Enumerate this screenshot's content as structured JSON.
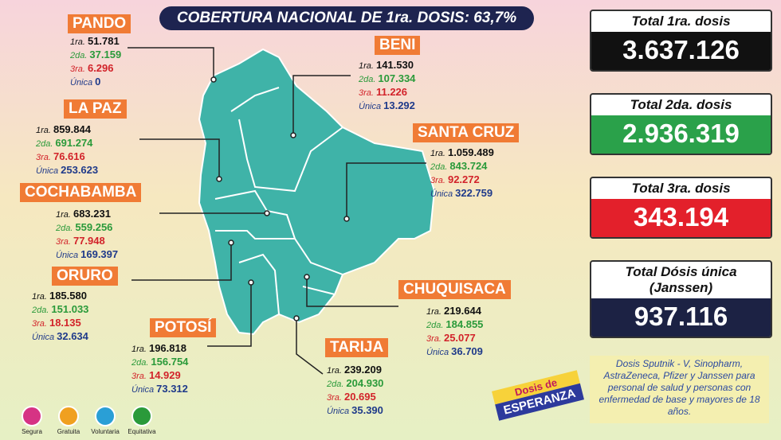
{
  "title": "COBERTURA NACIONAL DE 1ra. DOSIS: 63,7%",
  "departments": [
    {
      "name": "PANDO",
      "doses": [
        {
          "label": "1ra.",
          "value": "51.781"
        },
        {
          "label": "2da.",
          "value": "37.159"
        },
        {
          "label": "3ra.",
          "value": "6.296"
        },
        {
          "label": "Única",
          "value": "0"
        }
      ]
    },
    {
      "name": "BENI",
      "doses": [
        {
          "label": "1ra.",
          "value": "141.530"
        },
        {
          "label": "2da.",
          "value": "107.334"
        },
        {
          "label": "3ra.",
          "value": "11.226"
        },
        {
          "label": "Única",
          "value": "13.292"
        }
      ]
    },
    {
      "name": "LA PAZ",
      "doses": [
        {
          "label": "1ra.",
          "value": "859.844"
        },
        {
          "label": "2da.",
          "value": "691.274"
        },
        {
          "label": "3ra.",
          "value": "76.616"
        },
        {
          "label": "Única",
          "value": "253.623"
        }
      ]
    },
    {
      "name": "SANTA CRUZ",
      "doses": [
        {
          "label": "1ra.",
          "value": "1.059.489"
        },
        {
          "label": "2da.",
          "value": "843.724"
        },
        {
          "label": "3ra.",
          "value": "92.272"
        },
        {
          "label": "Única",
          "value": "322.759"
        }
      ]
    },
    {
      "name": "COCHABAMBA",
      "doses": [
        {
          "label": "1ra.",
          "value": "683.231"
        },
        {
          "label": "2da.",
          "value": "559.256"
        },
        {
          "label": "3ra.",
          "value": "77.948"
        },
        {
          "label": "Única",
          "value": "169.397"
        }
      ]
    },
    {
      "name": "ORURO",
      "doses": [
        {
          "label": "1ra.",
          "value": "185.580"
        },
        {
          "label": "2da.",
          "value": "151.033"
        },
        {
          "label": "3ra.",
          "value": "18.135"
        },
        {
          "label": "Única",
          "value": "32.634"
        }
      ]
    },
    {
      "name": "CHUQUISACA",
      "doses": [
        {
          "label": "1ra.",
          "value": "219.644"
        },
        {
          "label": "2da.",
          "value": "184.855"
        },
        {
          "label": "3ra.",
          "value": "25.077"
        },
        {
          "label": "Única",
          "value": "36.709"
        }
      ]
    },
    {
      "name": "POTOSÍ",
      "doses": [
        {
          "label": "1ra.",
          "value": "196.818"
        },
        {
          "label": "2da.",
          "value": "156.754"
        },
        {
          "label": "3ra.",
          "value": "14.929"
        },
        {
          "label": "Única",
          "value": "73.312"
        }
      ]
    },
    {
      "name": "TARIJA",
      "doses": [
        {
          "label": "1ra.",
          "value": "239.209"
        },
        {
          "label": "2da.",
          "value": "204.930"
        },
        {
          "label": "3ra.",
          "value": "20.695"
        },
        {
          "label": "Única",
          "value": "35.390"
        }
      ]
    }
  ],
  "totals": [
    {
      "label": "Total 1ra. dosis",
      "value": "3.637.126"
    },
    {
      "label": "Total 2da. dosis",
      "value": "2.936.319"
    },
    {
      "label": "Total 3ra. dosis",
      "value": "343.194"
    },
    {
      "label": "Total Dósis única (Janssen)",
      "value": "937.116"
    }
  ],
  "note": "Dosis Sputnik - V, Sinopharm, AstraZeneca, Pfizer y Janssen para personal de salud y personas con enfermedad de base y mayores de 18 años.",
  "badges": [
    "Segura",
    "Gratuita",
    "Voluntaria",
    "Equitativa"
  ],
  "logo": [
    "Dosis de",
    "ESPERANZA"
  ]
}
